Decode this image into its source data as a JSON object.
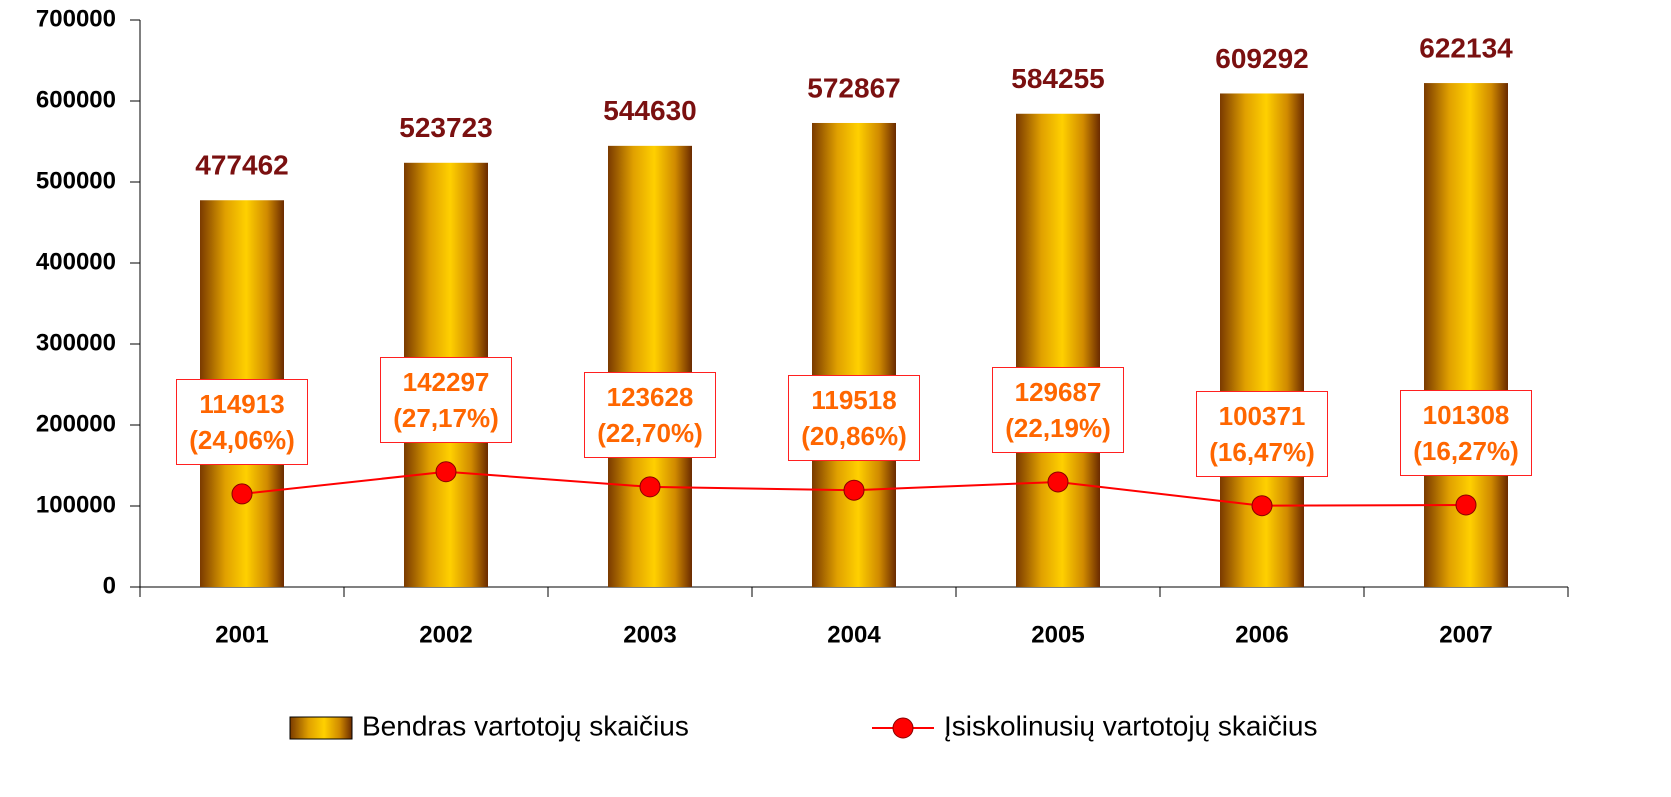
{
  "chart_data": {
    "type": "bar",
    "categories": [
      "2001",
      "2002",
      "2003",
      "2004",
      "2005",
      "2006",
      "2007"
    ],
    "series": [
      {
        "name": "Bendras vartotojų skaičius",
        "type": "bar",
        "color": "#ffcc00",
        "values": [
          477462,
          523723,
          544630,
          572867,
          584255,
          609292,
          622134
        ]
      },
      {
        "name": "Įsiskolinusių vartotojų skaičius",
        "type": "line",
        "color": "#ff0000",
        "values": [
          114913,
          142297,
          123628,
          119518,
          129687,
          100371,
          101308
        ],
        "value_labels": [
          "114913\n(24,06%)",
          "142297\n(27,17%)",
          "123628\n(22,70%)",
          "119518\n(20,86%)",
          "129687\n(22,19%)",
          "100371\n(16,47%)",
          "101308\n(16,27%)"
        ]
      }
    ],
    "ylim": [
      0,
      700000
    ],
    "yticks": [
      0,
      100000,
      200000,
      300000,
      400000,
      500000,
      600000,
      700000
    ],
    "legend": "bottom"
  }
}
